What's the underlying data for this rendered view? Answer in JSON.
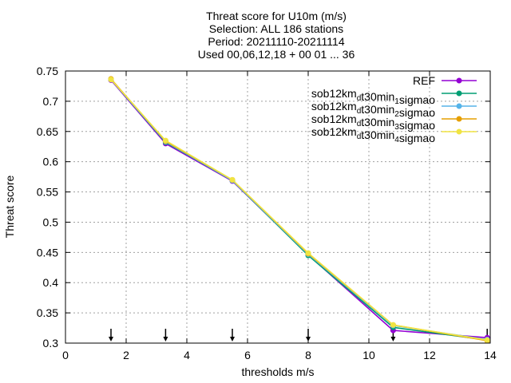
{
  "chart_data": {
    "type": "line",
    "title_lines": [
      "Threat score  for U10m (m/s)",
      "Selection: ALL     186 stations",
      "Period: 20211110-20211114",
      "Used 00,06,12,18 + 00 01 ... 36"
    ],
    "xlabel": "thresholds m/s",
    "ylabel": "Threat score",
    "xlim": [
      0,
      14
    ],
    "ylim": [
      0.3,
      0.75
    ],
    "xticks": [
      0,
      2,
      4,
      6,
      8,
      10,
      12,
      14
    ],
    "xtick_labels": [
      "0",
      "2",
      "4",
      "6",
      "8",
      "10",
      "12",
      "14"
    ],
    "yticks": [
      0.3,
      0.35,
      0.4,
      0.45,
      0.5,
      0.55,
      0.6,
      0.65,
      0.7,
      0.75
    ],
    "ytick_labels": [
      "0.3",
      "0.35",
      "0.4",
      "0.45",
      "0.5",
      "0.55",
      "0.6",
      "0.65",
      "0.7",
      "0.75"
    ],
    "grid": true,
    "legend_position": "top-right",
    "threshold_markers": [
      1.5,
      3.3,
      5.5,
      8,
      10.8,
      13.9
    ],
    "x": [
      1.5,
      3.3,
      5.5,
      8,
      10.8,
      13.9
    ],
    "series": [
      {
        "name": "REF",
        "legend_parts": [
          {
            "t": "REF",
            "sub": false
          }
        ],
        "color": "#9400d3",
        "values": [
          0.735,
          0.63,
          0.568,
          0.446,
          0.321,
          0.309
        ]
      },
      {
        "name": "sob12km_dt30min_1sigmao",
        "legend_parts": [
          {
            "t": "sob12km",
            "sub": false
          },
          {
            "t": "d",
            "sub": true
          },
          {
            "t": "t30min",
            "sub": false
          },
          {
            "t": "1",
            "sub": true
          },
          {
            "t": "sigmao",
            "sub": false
          }
        ],
        "color": "#009e73",
        "values": [
          0.736,
          0.632,
          0.569,
          0.445,
          0.326,
          0.305
        ]
      },
      {
        "name": "sob12km_dt30min_2sigmao",
        "legend_parts": [
          {
            "t": "sob12km",
            "sub": false
          },
          {
            "t": "d",
            "sub": true
          },
          {
            "t": "t30min",
            "sub": false
          },
          {
            "t": "2",
            "sub": true
          },
          {
            "t": "sigmao",
            "sub": false
          }
        ],
        "color": "#56b4e9",
        "values": [
          0.736,
          0.633,
          0.569,
          0.447,
          0.329,
          0.306
        ]
      },
      {
        "name": "sob12km_dt30min_3sigmao",
        "legend_parts": [
          {
            "t": "sob12km",
            "sub": false
          },
          {
            "t": "d",
            "sub": true
          },
          {
            "t": "t30min",
            "sub": false
          },
          {
            "t": "3",
            "sub": true
          },
          {
            "t": "sigmao",
            "sub": false
          }
        ],
        "color": "#e69f00",
        "values": [
          0.737,
          0.634,
          0.57,
          0.448,
          0.33,
          0.304
        ]
      },
      {
        "name": "sob12km_dt30min_4sigmao",
        "legend_parts": [
          {
            "t": "sob12km",
            "sub": false
          },
          {
            "t": "d",
            "sub": true
          },
          {
            "t": "t30min",
            "sub": false
          },
          {
            "t": "4",
            "sub": true
          },
          {
            "t": "sigmao",
            "sub": false
          }
        ],
        "color": "#f0e442",
        "values": [
          0.736,
          0.635,
          0.57,
          0.449,
          0.33,
          0.305
        ]
      }
    ]
  }
}
